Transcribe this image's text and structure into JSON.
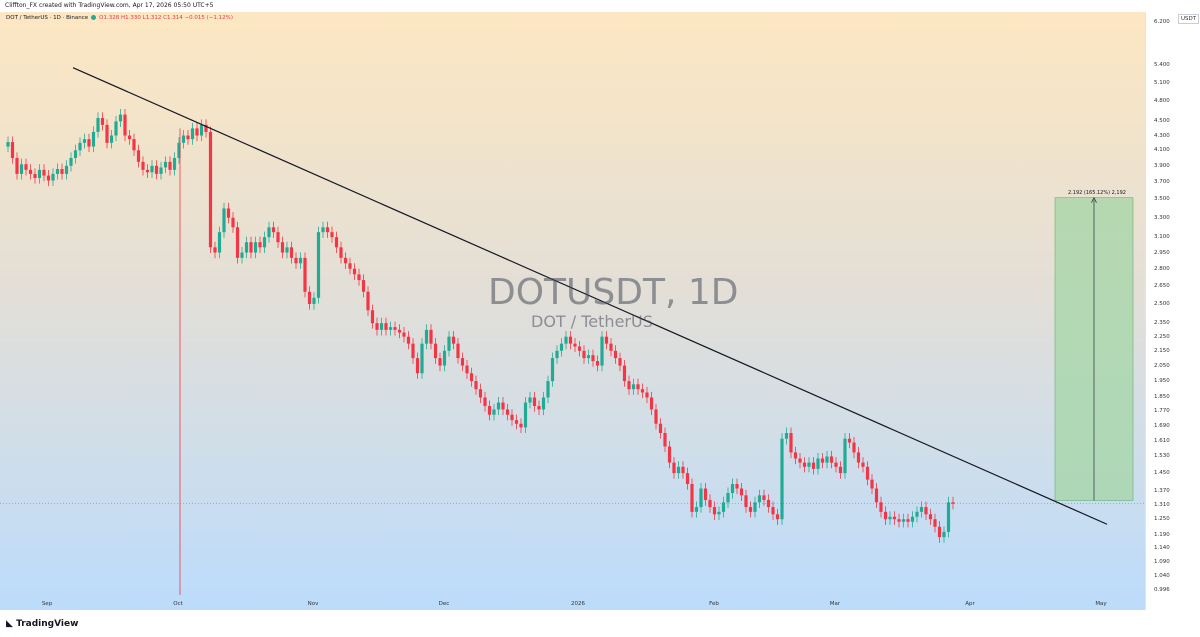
{
  "header": {
    "credit": "Cliffton_FX created with TradingView.com, Apr 17, 2026 05:50 UTC+5"
  },
  "legend": {
    "symbol": "DOT / TetherUS · 1D · Binance",
    "ohlc": "O1.328 H1.330 L1.312 C1.314 −0.015 (−1.12%)"
  },
  "watermark": {
    "ticker": "DOTUSDT, 1D",
    "name": "DOT / TetherUS"
  },
  "currency": "USDT",
  "measure_label": "2.192 (165.12%) 2,192",
  "footer": {
    "logo": "TradingView"
  },
  "colors": {
    "up": "#22ab94",
    "down": "#f23645",
    "trendline": "#131722",
    "measure_fill": "#a5d6a7"
  },
  "chart_data": {
    "type": "candlestick",
    "title": "DOTUSDT, 1D",
    "subtitle": "DOT / TetherUS",
    "y_scale": "log",
    "ylim": [
      0.97,
      6.4
    ],
    "y_ticks": [
      "6.200",
      "5.400",
      "5.100",
      "4.800",
      "4.500",
      "4.300",
      "4.100",
      "3.900",
      "3.700",
      "3.500",
      "3.300",
      "3.100",
      "2.950",
      "2.800",
      "2.650",
      "2.500",
      "2.350",
      "2.250",
      "2.150",
      "2.050",
      "1.950",
      "1.850",
      "1.770",
      "1.690",
      "1.610",
      "1.530",
      "1.450",
      "1.370",
      "1.310",
      "1.250",
      "1.190",
      "1.140",
      "1.090",
      "1.040",
      "0.996"
    ],
    "x_ticks": [
      {
        "label": "Sep",
        "day": 6
      },
      {
        "label": "Oct",
        "day": 36
      },
      {
        "label": "Nov",
        "day": 67
      },
      {
        "label": "Dec",
        "day": 97
      },
      {
        "label": "2026",
        "day": 128
      },
      {
        "label": "Feb",
        "day": 159
      },
      {
        "label": "Mar",
        "day": 187
      },
      {
        "label": "Apr",
        "day": 218
      },
      {
        "label": "May",
        "day": 248
      }
    ],
    "close_series_start": 4.15,
    "closes": [
      4.21,
      4.0,
      3.8,
      3.92,
      3.85,
      3.8,
      3.75,
      3.85,
      3.78,
      3.72,
      3.8,
      3.86,
      3.8,
      3.9,
      4.0,
      4.1,
      4.2,
      4.25,
      4.15,
      4.35,
      4.55,
      4.45,
      4.2,
      4.3,
      4.5,
      4.6,
      4.3,
      4.25,
      4.1,
      3.95,
      3.85,
      3.82,
      3.9,
      3.8,
      3.88,
      3.95,
      3.85,
      4.0,
      4.2,
      4.3,
      4.25,
      4.4,
      4.3,
      4.45,
      4.35,
      3.0,
      2.95,
      3.15,
      3.4,
      3.3,
      3.2,
      2.9,
      2.95,
      3.05,
      2.95,
      3.05,
      3.0,
      3.1,
      3.2,
      3.15,
      3.05,
      2.95,
      3.0,
      2.9,
      2.85,
      2.9,
      2.6,
      2.5,
      2.55,
      3.15,
      3.2,
      3.15,
      3.1,
      3.0,
      2.9,
      2.85,
      2.8,
      2.75,
      2.7,
      2.6,
      2.45,
      2.35,
      2.3,
      2.35,
      2.3,
      2.32,
      2.3,
      2.28,
      2.25,
      2.2,
      2.1,
      2.0,
      2.2,
      2.3,
      2.2,
      2.1,
      2.05,
      2.15,
      2.25,
      2.2,
      2.1,
      2.05,
      2.0,
      1.95,
      1.9,
      1.85,
      1.8,
      1.75,
      1.78,
      1.82,
      1.78,
      1.75,
      1.72,
      1.7,
      1.68,
      1.82,
      1.85,
      1.8,
      1.78,
      1.85,
      1.95,
      2.1,
      2.15,
      2.2,
      2.25,
      2.2,
      2.18,
      2.15,
      2.1,
      2.12,
      2.08,
      2.05,
      2.25,
      2.2,
      2.15,
      2.1,
      2.05,
      1.95,
      1.9,
      1.93,
      1.9,
      1.88,
      1.85,
      1.78,
      1.7,
      1.65,
      1.58,
      1.5,
      1.45,
      1.48,
      1.45,
      1.4,
      1.28,
      1.3,
      1.38,
      1.33,
      1.3,
      1.27,
      1.28,
      1.32,
      1.36,
      1.4,
      1.38,
      1.35,
      1.3,
      1.28,
      1.32,
      1.35,
      1.33,
      1.3,
      1.27,
      1.25,
      1.62,
      1.65,
      1.55,
      1.52,
      1.5,
      1.48,
      1.5,
      1.47,
      1.52,
      1.5,
      1.53,
      1.5,
      1.48,
      1.45,
      1.62,
      1.6,
      1.55,
      1.5,
      1.48,
      1.42,
      1.38,
      1.32,
      1.28,
      1.25,
      1.26,
      1.25,
      1.24,
      1.25,
      1.24,
      1.26,
      1.28,
      1.3,
      1.27,
      1.25,
      1.22,
      1.18,
      1.2,
      1.32,
      1.314
    ],
    "trendline": {
      "start": {
        "day": 12,
        "price": 5.35
      },
      "end": {
        "day": 243,
        "price": 1.23
      }
    },
    "red_wick": {
      "day": 36,
      "low": 0.98
    },
    "current_price": 1.314,
    "measure": {
      "day_start": 233,
      "day_end": 251,
      "from": 1.328,
      "to": 3.52,
      "change": 2.192,
      "percent": 165.12
    }
  }
}
